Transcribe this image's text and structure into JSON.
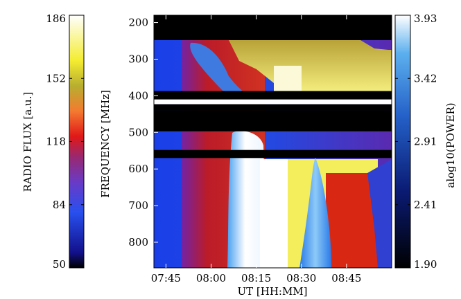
{
  "chart_data": {
    "type": "heatmap",
    "title": "",
    "main_plot": {
      "xlabel": "UT [HH:MM]",
      "ylabel": "FREQUENCY [MHz]",
      "x_range": [
        "07:41",
        "09:00"
      ],
      "y_range": [
        180,
        870
      ],
      "y_reversed": true,
      "x_ticks": [
        "07:45",
        "08:00",
        "08:15",
        "08:30",
        "08:45"
      ],
      "y_ticks": [
        "200",
        "300",
        "400",
        "500",
        "600",
        "700",
        "800"
      ],
      "data_gaps_mhz": [
        [
          180,
          248
        ],
        [
          387,
          410
        ],
        [
          423,
          440
        ],
        [
          440,
          497
        ],
        [
          548,
          570
        ]
      ],
      "bright_emission_bands": [
        {
          "from": "08:12",
          "to": "08:27",
          "freq_min_mhz": 480,
          "freq_max_mhz": 870
        },
        {
          "from": "08:34",
          "to": "08:41",
          "freq_min_mhz": 580,
          "freq_max_mhz": 870
        }
      ]
    },
    "left_colorbar": {
      "label": "RADIO FLUX [a.u.]",
      "range": [
        50,
        186
      ],
      "ticks": [
        "186",
        "152",
        "118",
        "84",
        "50"
      ]
    },
    "right_colorbar": {
      "label": "alog10(POWER)",
      "range": [
        1.9,
        3.93
      ],
      "ticks": [
        "3.93",
        "3.42",
        "2.91",
        "2.41",
        "1.90"
      ]
    }
  },
  "colors": {
    "scale_low": "#000000",
    "scale_blue": "#1f3fe0",
    "scale_red": "#e8201a",
    "scale_yellow": "#f2ee28",
    "scale_high": "#ffffff",
    "gap": "#000000"
  }
}
